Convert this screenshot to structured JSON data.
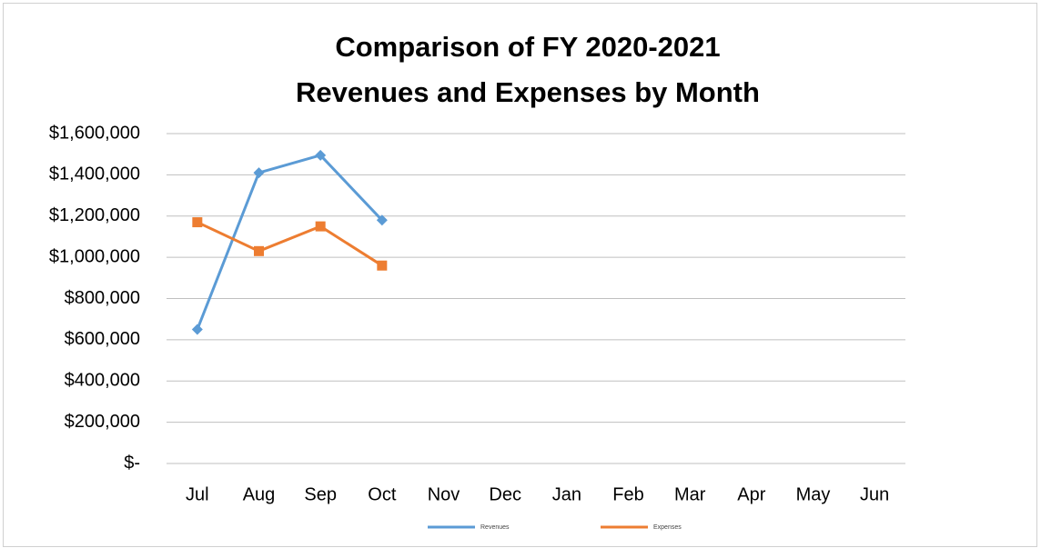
{
  "chart_data": {
    "type": "line",
    "title": [
      "Comparison of FY 2020-2021",
      "Revenues and Expenses by Month"
    ],
    "categories": [
      "Jul",
      "Aug",
      "Sep",
      "Oct",
      "Nov",
      "Dec",
      "Jan",
      "Feb",
      "Mar",
      "Apr",
      "May",
      "Jun"
    ],
    "series": [
      {
        "name": "Revenues",
        "color": "#5b9bd5",
        "marker": "diamond",
        "values": [
          650000,
          1410000,
          1495000,
          1180000,
          null,
          null,
          null,
          null,
          null,
          null,
          null,
          null
        ]
      },
      {
        "name": "Expenses",
        "color": "#ed7d31",
        "marker": "square",
        "values": [
          1170000,
          1030000,
          1150000,
          960000,
          null,
          null,
          null,
          null,
          null,
          null,
          null,
          null
        ]
      }
    ],
    "ylim": [
      0,
      1600000
    ],
    "yticks": [
      {
        "value": 0,
        "label": "$-"
      },
      {
        "value": 200000,
        "label": "$200,000"
      },
      {
        "value": 400000,
        "label": "$400,000"
      },
      {
        "value": 600000,
        "label": "$600,000"
      },
      {
        "value": 800000,
        "label": "$800,000"
      },
      {
        "value": 1000000,
        "label": "$1,000,000"
      },
      {
        "value": 1200000,
        "label": "$1,200,000"
      },
      {
        "value": 1400000,
        "label": "$1,400,000"
      },
      {
        "value": 1600000,
        "label": "$1,600,000"
      }
    ],
    "grid": true,
    "legend": "bottom"
  }
}
